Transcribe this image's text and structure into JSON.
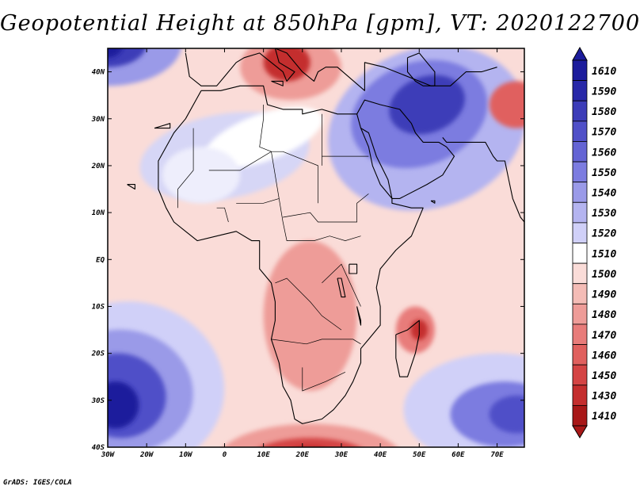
{
  "app": {
    "credit": "GrADS: IGES/COLA"
  },
  "chart_data": {
    "type": "heatmap",
    "title": "Geopotential Height at 850hPa [gpm], VT: 2020122700",
    "variable": "Geopotential Height",
    "level": "850hPa",
    "units": "gpm",
    "valid_time": "2020122700",
    "xlim": [
      -30,
      77
    ],
    "ylim": [
      -40,
      45
    ],
    "x_ticks": [
      -30,
      -20,
      -10,
      0,
      10,
      20,
      30,
      40,
      50,
      60,
      70
    ],
    "x_tick_labels": [
      "30W",
      "20W",
      "10W",
      "0",
      "10E",
      "20E",
      "30E",
      "40E",
      "50E",
      "60E",
      "70E"
    ],
    "y_ticks": [
      40,
      30,
      20,
      10,
      0,
      -10,
      -20,
      -30,
      -40
    ],
    "y_tick_labels": [
      "40N",
      "30N",
      "20N",
      "10N",
      "EQ",
      "10S",
      "20S",
      "30S",
      "40S"
    ],
    "colorbar": {
      "labels": [
        "1610",
        "1590",
        "1580",
        "1570",
        "1560",
        "1550",
        "1540",
        "1530",
        "1520",
        "1510",
        "1500",
        "1490",
        "1480",
        "1470",
        "1460",
        "1450",
        "1430",
        "1410"
      ],
      "colors": [
        "#1c1c9c",
        "#2828a8",
        "#3c3cb8",
        "#5050c8",
        "#6464d4",
        "#7c7ce0",
        "#9a9ae8",
        "#b4b4f0",
        "#d0d0f8",
        "#ffffff",
        "#fadcd8",
        "#f4bcb6",
        "#ee9c98",
        "#e87c7a",
        "#e0605e",
        "#d44444",
        "#c42e2e",
        "#a81818"
      ]
    },
    "features": [
      {
        "name": "High over Southern Atlantic",
        "lon": -27,
        "lat": -30,
        "value_approx": 1600
      },
      {
        "name": "High over Northeast Atlantic",
        "lon": -28,
        "lat": 44,
        "value_approx": 1580
      },
      {
        "name": "High over Arabian Peninsula / Iran",
        "lon": 52,
        "lat": 32,
        "value_approx": 1590
      },
      {
        "name": "High over South Indian Ocean",
        "lon": 72,
        "lat": -33,
        "value_approx": 1570
      },
      {
        "name": "Low over Mediterranean",
        "lon": 17,
        "lat": 40,
        "value_approx": 1430
      },
      {
        "name": "Low east of Madagascar",
        "lon": 49,
        "lat": -15,
        "value_approx": 1460
      },
      {
        "name": "Low south of Africa",
        "lon": 20,
        "lat": -40,
        "value_approx": 1410
      },
      {
        "name": "Low over Himalaya / western China",
        "lon": 74,
        "lat": 33,
        "value_approx": 1450
      }
    ]
  }
}
